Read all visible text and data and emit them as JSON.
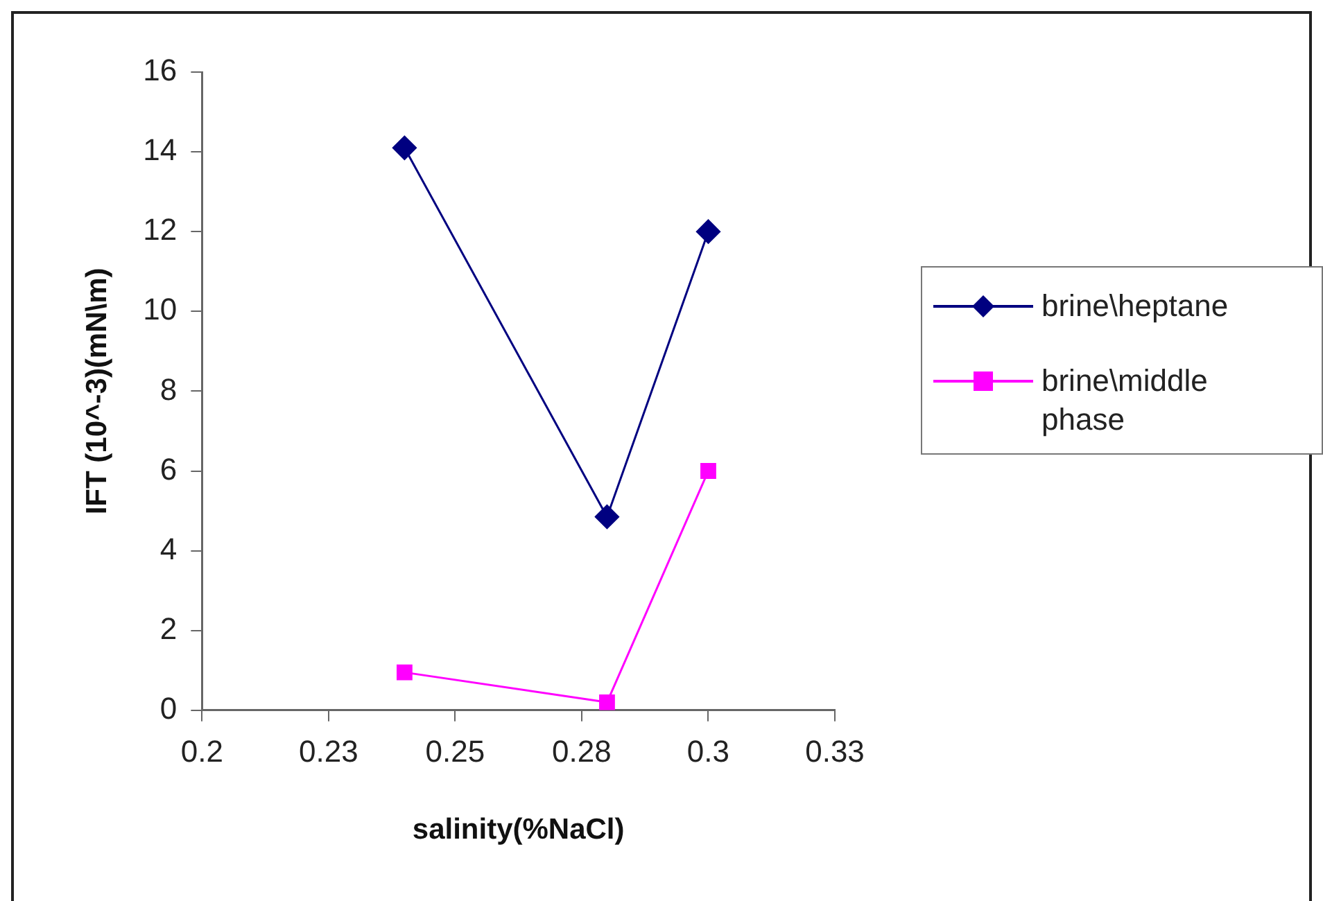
{
  "chart_data": {
    "type": "line",
    "xlabel": "salinity(%NaCl)",
    "ylabel": "IFT (10^-3)(mN\\m)",
    "xlim": [
      0.2,
      0.325
    ],
    "xticks": [
      0.2,
      {
        "value": 0.225,
        "label": "0.23"
      },
      0.25,
      {
        "value": 0.275,
        "label": "0.28"
      },
      0.3,
      {
        "value": 0.325,
        "label": "0.33"
      }
    ],
    "ylim": [
      0,
      16
    ],
    "yticks": [
      0,
      2,
      4,
      6,
      8,
      10,
      12,
      14,
      16
    ],
    "grid": false,
    "legend": "right",
    "series": [
      {
        "name": "brine\\heptane",
        "color": "#000080",
        "marker": "diamond",
        "x": [
          0.24,
          0.28,
          0.3
        ],
        "values": [
          14.1,
          4.85,
          12
        ]
      },
      {
        "name": "brine\\middle phase",
        "color": "#ff00ff",
        "marker": "square",
        "x": [
          0.24,
          0.28,
          0.3
        ],
        "values": [
          0.95,
          0.2,
          6
        ]
      }
    ]
  }
}
